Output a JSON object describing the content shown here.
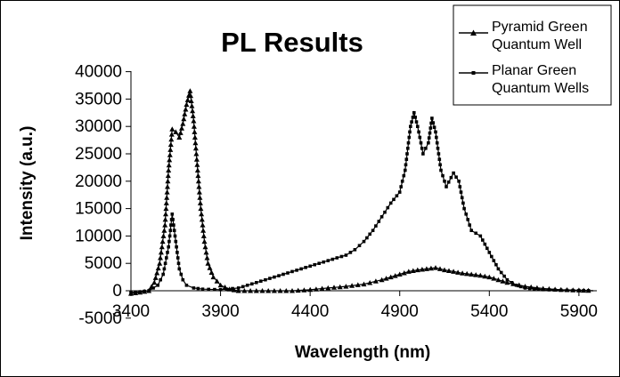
{
  "chart_data": {
    "type": "line",
    "title": "PL Results",
    "xlabel": "Wavelength (nm)",
    "ylabel": "Intensity (a.u.)",
    "xlim": [
      3400,
      6000
    ],
    "ylim": [
      -5000,
      40000
    ],
    "x_ticks": [
      "3400",
      "3900",
      "4400",
      "4900",
      "5400",
      "5900"
    ],
    "y_ticks": [
      "-5000",
      "0",
      "5000",
      "10000",
      "15000",
      "20000",
      "25000",
      "30000",
      "35000",
      "40000"
    ],
    "grid": false,
    "legend_position": "top-right",
    "series": [
      {
        "name": "Pyramid Green Quantum Well",
        "marker": "triangle",
        "color": "#000000",
        "x": [
          3400,
          3450,
          3500,
          3530,
          3560,
          3590,
          3610,
          3630,
          3650,
          3670,
          3690,
          3710,
          3730,
          3750,
          3770,
          3790,
          3810,
          3830,
          3860,
          3900,
          3950,
          4000,
          4100,
          4200,
          4300,
          4400,
          4500,
          4600,
          4700,
          4800,
          4900,
          4950,
          5000,
          5050,
          5100,
          5150,
          5200,
          5250,
          5300,
          5350,
          5400,
          5450,
          5500,
          5600,
          5700,
          5800,
          5900,
          5980
        ],
        "y": [
          -500,
          -300,
          0,
          1500,
          5000,
          12000,
          22000,
          29500,
          29000,
          28000,
          30500,
          34000,
          36500,
          31000,
          23000,
          15000,
          9000,
          5000,
          2500,
          1000,
          300,
          0,
          0,
          0,
          0,
          200,
          500,
          800,
          1200,
          2000,
          3000,
          3500,
          3800,
          4000,
          4200,
          3800,
          3500,
          3200,
          3000,
          2800,
          2500,
          2000,
          1500,
          800,
          400,
          200,
          100,
          0
        ]
      },
      {
        "name": "Planar Green Quantum Wells",
        "marker": "square",
        "color": "#000000",
        "x": [
          3400,
          3450,
          3500,
          3550,
          3580,
          3610,
          3630,
          3650,
          3670,
          3690,
          3710,
          3750,
          3800,
          3900,
          4000,
          4100,
          4200,
          4250,
          4300,
          4350,
          4400,
          4450,
          4500,
          4550,
          4600,
          4650,
          4700,
          4750,
          4800,
          4850,
          4900,
          4930,
          4960,
          4980,
          5000,
          5030,
          5060,
          5080,
          5100,
          5130,
          5160,
          5200,
          5230,
          5260,
          5300,
          5350,
          5400,
          5450,
          5500,
          5550,
          5600,
          5650,
          5700,
          5800,
          5900,
          5980
        ],
        "y": [
          -300,
          -200,
          0,
          1000,
          3000,
          8000,
          14000,
          9000,
          4000,
          2000,
          1000,
          500,
          300,
          200,
          500,
          1500,
          2500,
          3000,
          3500,
          4000,
          4500,
          5000,
          5500,
          6000,
          6500,
          7500,
          9000,
          11000,
          13500,
          16000,
          18000,
          22000,
          30000,
          32500,
          30000,
          25000,
          27000,
          31500,
          29000,
          22000,
          19000,
          21500,
          20000,
          15000,
          11000,
          10000,
          7000,
          4000,
          2000,
          1000,
          500,
          300,
          200,
          100,
          50,
          0
        ]
      }
    ]
  }
}
